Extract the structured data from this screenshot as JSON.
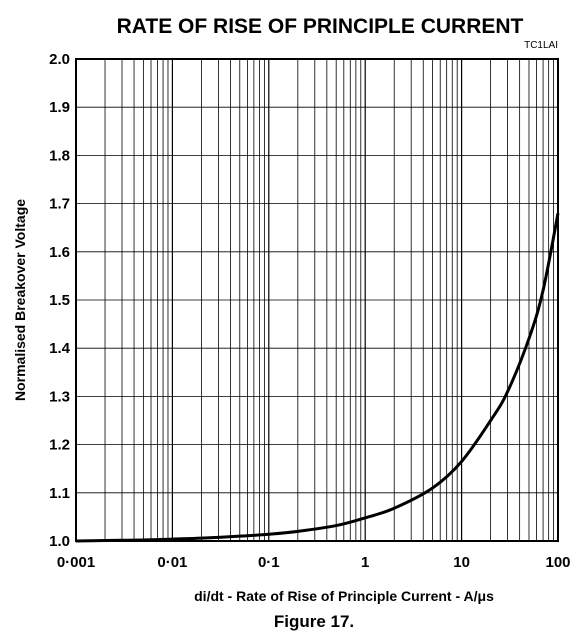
{
  "chart_data": {
    "type": "line",
    "title": "RATE OF RISE OF PRINCIPLE CURRENT",
    "code": "TC1LAI",
    "xlabel": "di/dt - Rate of Rise of Principle Current - A/μs",
    "ylabel": "Normalised Breakover Voltage",
    "x_scale": "log",
    "xlim": [
      0.001,
      100
    ],
    "ylim": [
      1.0,
      2.0
    ],
    "x_ticks": [
      0.001,
      0.01,
      0.1,
      1,
      10,
      100
    ],
    "x_tick_labels": [
      "0·001",
      "0·01",
      "0·1",
      "1",
      "10",
      "100"
    ],
    "y_ticks": [
      1.0,
      1.1,
      1.2,
      1.3,
      1.4,
      1.5,
      1.6,
      1.7,
      1.8,
      1.9,
      2.0
    ],
    "y_tick_labels": [
      "1.0",
      "1.1",
      "1.2",
      "1.3",
      "1.4",
      "1.5",
      "1.6",
      "1.7",
      "1.8",
      "1.9",
      "2.0"
    ],
    "grid": true,
    "legend": "none",
    "series": [
      {
        "x": [
          0.001,
          0.002,
          0.005,
          0.01,
          0.02,
          0.05,
          0.1,
          0.2,
          0.5,
          1,
          2,
          5,
          10,
          20,
          30,
          50,
          70,
          100
        ],
        "y": [
          1.0,
          1.001,
          1.002,
          1.004,
          1.006,
          1.01,
          1.014,
          1.02,
          1.032,
          1.048,
          1.068,
          1.11,
          1.165,
          1.25,
          1.31,
          1.42,
          1.52,
          1.68
        ]
      }
    ]
  },
  "caption": "Figure 17."
}
